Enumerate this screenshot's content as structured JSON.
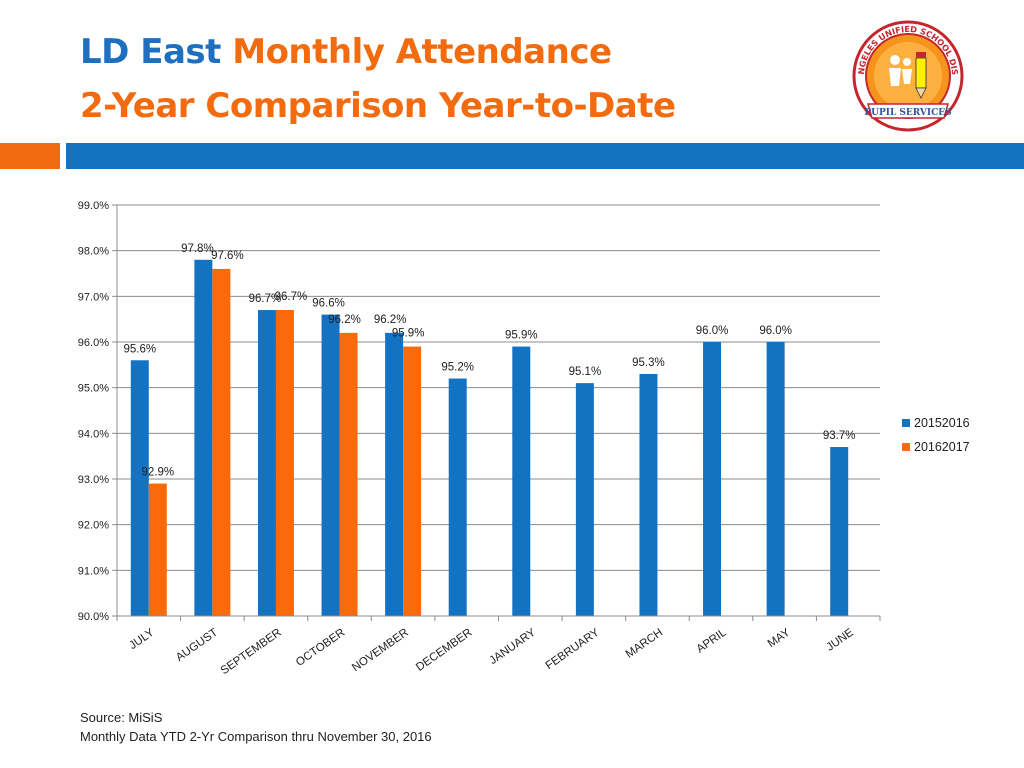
{
  "header": {
    "title_part1": "LD East",
    "title_part2": "Monthly Attendance",
    "subtitle": "2-Year Comparison Year-to-Date"
  },
  "logo": {
    "name": "los-angeles-unified-school-district-pupil-services-seal",
    "text_ring": "LOS ANGELES UNIFIED SCHOOL DISTRICT",
    "banner": "PUPIL SERVICES"
  },
  "colors": {
    "title_blue": "#1f6fc0",
    "title_orange": "#f26b0f",
    "series_2015": "#1372c2",
    "series_2016": "#fa6a0a"
  },
  "chart_data": {
    "type": "bar",
    "title": "",
    "xlabel": "",
    "ylabel": "",
    "ylim": [
      90.0,
      99.0
    ],
    "yticks": [
      "99.0%",
      "98.0%",
      "97.0%",
      "96.0%",
      "95.0%",
      "94.0%",
      "93.0%",
      "92.0%",
      "91.0%",
      "90.0%"
    ],
    "grid": true,
    "legend_position": "right",
    "categories": [
      "JULY",
      "AUGUST",
      "SEPTEMBER",
      "OCTOBER",
      "NOVEMBER",
      "DECEMBER",
      "JANUARY",
      "FEBRUARY",
      "MARCH",
      "APRIL",
      "MAY",
      "JUNE"
    ],
    "series": [
      {
        "name": "20152016",
        "values": [
          95.6,
          97.8,
          96.7,
          96.6,
          96.2,
          95.2,
          95.9,
          95.1,
          95.3,
          96.0,
          96.0,
          93.7
        ],
        "labels": [
          "95.6%",
          "97.8%",
          "96.7%",
          "96.6%",
          "96.2%",
          "95.2%",
          "95.9%",
          "95.1%",
          "95.3%",
          "96.0%",
          "96.0%",
          "93.7%"
        ]
      },
      {
        "name": "20162017",
        "values": [
          92.9,
          97.6,
          96.7,
          96.2,
          95.9,
          null,
          null,
          null,
          null,
          null,
          null,
          null
        ],
        "labels": [
          "92.9%",
          "97.6%",
          "96.7%",
          "96.2%",
          "95.9%",
          null,
          null,
          null,
          null,
          null,
          null,
          null
        ]
      }
    ]
  },
  "footer": {
    "source": "Source: MiSiS",
    "note": "Monthly  Data  YTD  2-Yr Comparison thru November 30, 2016"
  }
}
